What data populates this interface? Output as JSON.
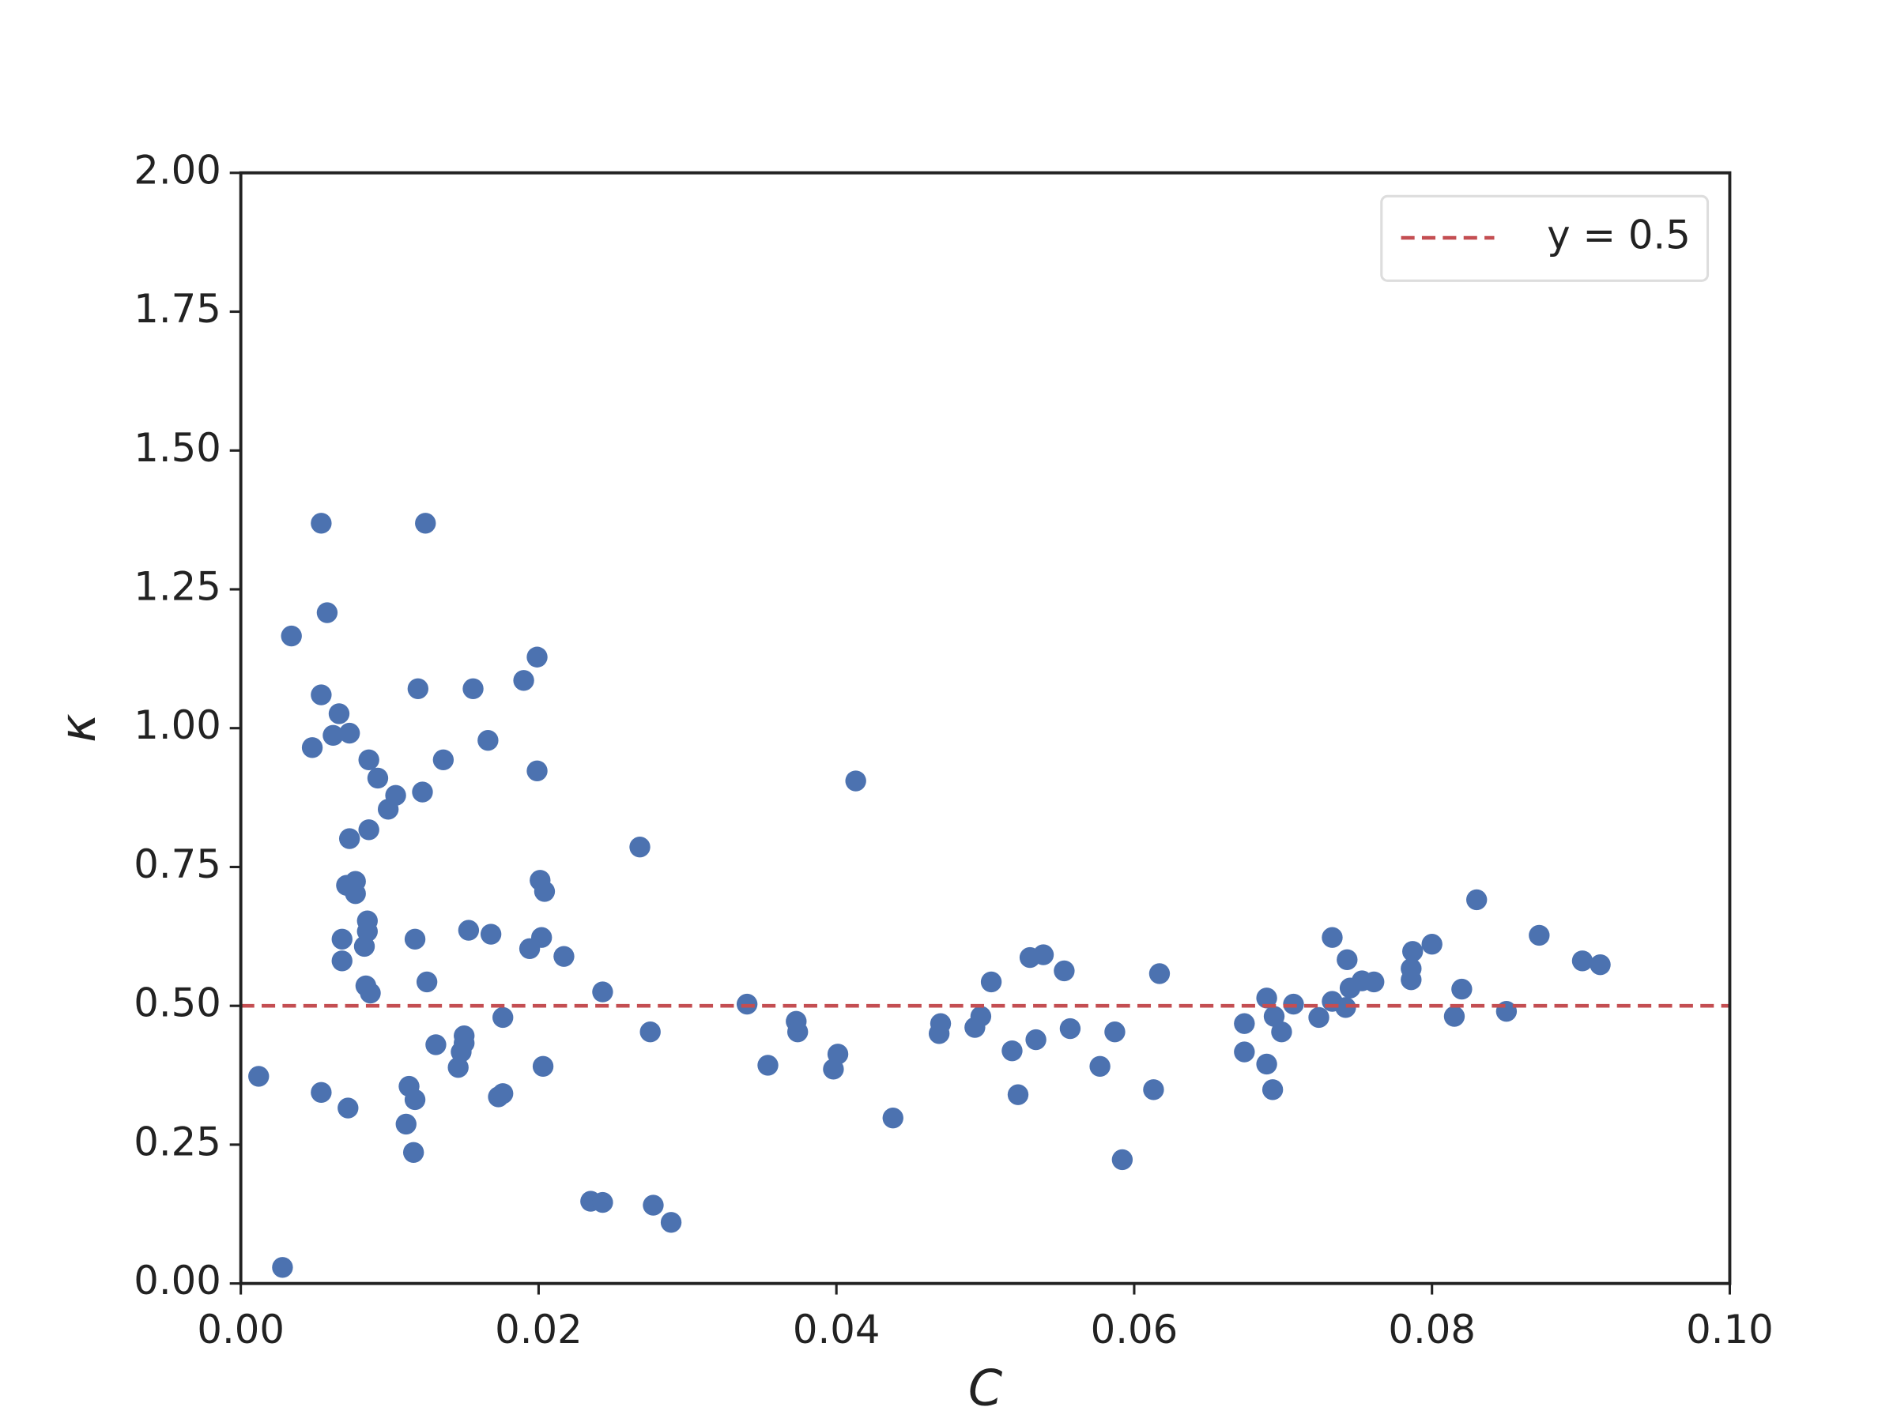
{
  "chart_data": {
    "type": "scatter",
    "xlabel": "C",
    "ylabel": "κ",
    "xlim": [
      0,
      0.1
    ],
    "ylim": [
      0,
      2
    ],
    "xticks": [
      {
        "value": 0,
        "label": "0.00"
      },
      0.02,
      0.04,
      0.06,
      0.08,
      {
        "value": 0.1,
        "label": "0.10"
      }
    ],
    "yticks": [
      {
        "value": 0,
        "label": "0.00"
      },
      0.25,
      {
        "value": 0.5,
        "label": "0.50"
      },
      0.75,
      {
        "value": 1,
        "label": "1.00"
      },
      1.25,
      {
        "value": 1.5,
        "label": "1.50"
      },
      1.75,
      {
        "value": 2,
        "label": "2.00"
      }
    ],
    "grid": false,
    "legend": "upper right",
    "series": [
      {
        "color": "#4c72b0",
        "x": [
          0.0012,
          0.0028,
          0.0034,
          0.0048,
          0.0054,
          0.0054,
          0.0054,
          0.0058,
          0.0062,
          0.0066,
          0.0068,
          0.0068,
          0.0071,
          0.0073,
          0.0073,
          0.0072,
          0.0077,
          0.0077,
          0.0083,
          0.0085,
          0.0084,
          0.0086,
          0.0086,
          0.0087,
          0.0085,
          0.0092,
          0.0099,
          0.0104,
          0.0111,
          0.0113,
          0.0116,
          0.0117,
          0.0117,
          0.0119,
          0.0122,
          0.0124,
          0.0125,
          0.0131,
          0.0136,
          0.0146,
          0.0148,
          0.015,
          0.015,
          0.0153,
          0.0156,
          0.0166,
          0.0168,
          0.0173,
          0.0176,
          0.0176,
          0.019,
          0.0194,
          0.0199,
          0.0199,
          0.0201,
          0.0202,
          0.0203,
          0.0204,
          0.0217,
          0.0235,
          0.0243,
          0.0243,
          0.0268,
          0.0275,
          0.0277,
          0.0289,
          0.034,
          0.0354,
          0.0373,
          0.0374,
          0.0398,
          0.0401,
          0.0413,
          0.0438,
          0.0469,
          0.047,
          0.0493,
          0.0497,
          0.0504,
          0.0518,
          0.0522,
          0.053,
          0.0534,
          0.0539,
          0.0553,
          0.0557,
          0.0577,
          0.0587,
          0.0592,
          0.0613,
          0.0617,
          0.0674,
          0.0674,
          0.0689,
          0.0689,
          0.0693,
          0.0694,
          0.0699,
          0.0707,
          0.0724,
          0.0733,
          0.0733,
          0.0742,
          0.0743,
          0.0745,
          0.0753,
          0.0761,
          0.0787,
          0.0786,
          0.0786,
          0.08,
          0.0815,
          0.082,
          0.083,
          0.085,
          0.0872,
          0.0901,
          0.0913
        ],
        "values": [
          0.373,
          0.029,
          1.166,
          0.965,
          1.06,
          1.369,
          0.344,
          1.208,
          0.987,
          1.026,
          0.62,
          0.581,
          0.717,
          0.991,
          0.801,
          0.316,
          0.702,
          0.724,
          0.607,
          0.653,
          0.536,
          0.943,
          0.817,
          0.523,
          0.634,
          0.91,
          0.854,
          0.879,
          0.287,
          0.355,
          0.236,
          0.331,
          0.62,
          1.071,
          0.885,
          1.369,
          0.543,
          0.43,
          0.943,
          0.389,
          0.417,
          0.446,
          0.433,
          0.636,
          1.071,
          0.978,
          0.629,
          0.336,
          0.342,
          0.479,
          1.086,
          0.603,
          0.923,
          1.128,
          0.726,
          0.623,
          0.391,
          0.706,
          0.589,
          0.148,
          0.146,
          0.525,
          0.786,
          0.453,
          0.141,
          0.11,
          0.503,
          0.393,
          0.472,
          0.453,
          0.386,
          0.413,
          0.905,
          0.298,
          0.45,
          0.468,
          0.461,
          0.481,
          0.543,
          0.419,
          0.34,
          0.587,
          0.439,
          0.592,
          0.563,
          0.459,
          0.391,
          0.453,
          0.223,
          0.349,
          0.558,
          0.468,
          0.417,
          0.514,
          0.395,
          0.349,
          0.481,
          0.453,
          0.503,
          0.479,
          0.623,
          0.508,
          0.497,
          0.583,
          0.532,
          0.545,
          0.543,
          0.598,
          0.567,
          0.547,
          0.611,
          0.481,
          0.53,
          0.691,
          0.49,
          0.627,
          0.581,
          0.574
        ]
      }
    ],
    "hlines": [
      {
        "name": "y = 0.5",
        "value": 0.5,
        "color": "#c44e52"
      }
    ]
  }
}
